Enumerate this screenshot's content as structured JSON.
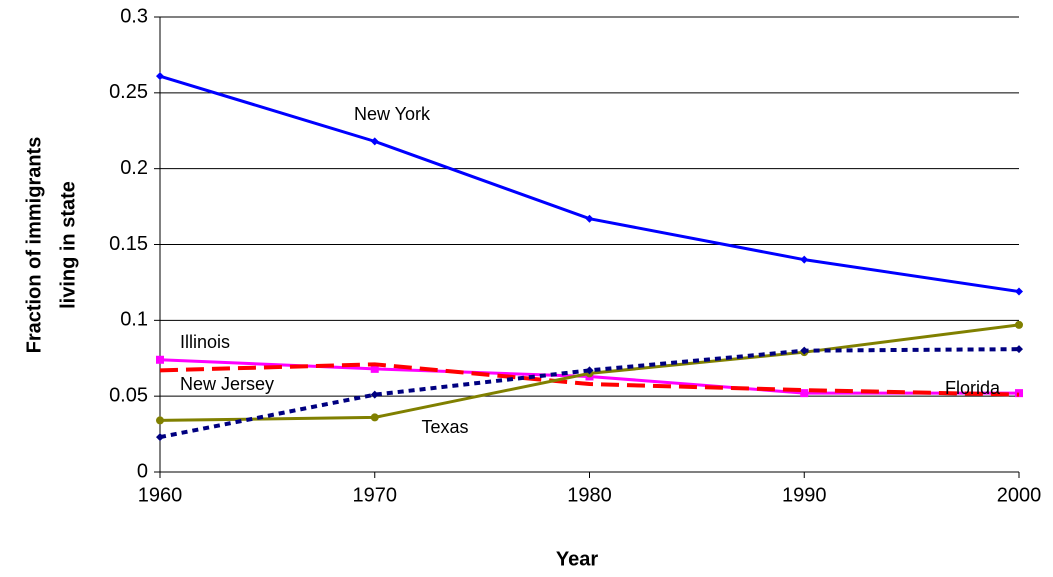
{
  "chart_data": {
    "type": "line",
    "xlabel": "Year",
    "ylabel": [
      "Fraction of immigrants",
      "living in state"
    ],
    "x": [
      1960,
      1970,
      1980,
      1990,
      2000
    ],
    "xlim": [
      1960,
      2000
    ],
    "xticks": [
      1960,
      1970,
      1980,
      1990,
      2000
    ],
    "ylim": [
      0,
      0.3
    ],
    "yticks": [
      0,
      0.05,
      0.1,
      0.15,
      0.2,
      0.25,
      0.3
    ],
    "grid": true,
    "series": [
      {
        "name": "New York",
        "color": "#0000ff",
        "dash": "solid",
        "marker": "diamond",
        "values": [
          0.261,
          0.218,
          0.167,
          0.14,
          0.119
        ]
      },
      {
        "name": "Illinois",
        "color": "#ff00ff",
        "dash": "solid",
        "marker": "square",
        "values": [
          0.074,
          0.068,
          0.063,
          0.052,
          0.052
        ]
      },
      {
        "name": "New Jersey",
        "color": "#ff0000",
        "dash": "dashed",
        "marker": "none",
        "values": [
          0.067,
          0.071,
          0.058,
          0.054,
          0.051
        ]
      },
      {
        "name": "Texas",
        "color": "#808000",
        "dash": "solid",
        "marker": "circle",
        "values": [
          0.034,
          0.036,
          0.065,
          0.079,
          0.097
        ]
      },
      {
        "name": "Florida",
        "color": "#000080",
        "dash": "dotted",
        "marker": "diamond",
        "values": [
          0.023,
          0.051,
          0.067,
          0.08,
          0.081
        ]
      }
    ]
  }
}
